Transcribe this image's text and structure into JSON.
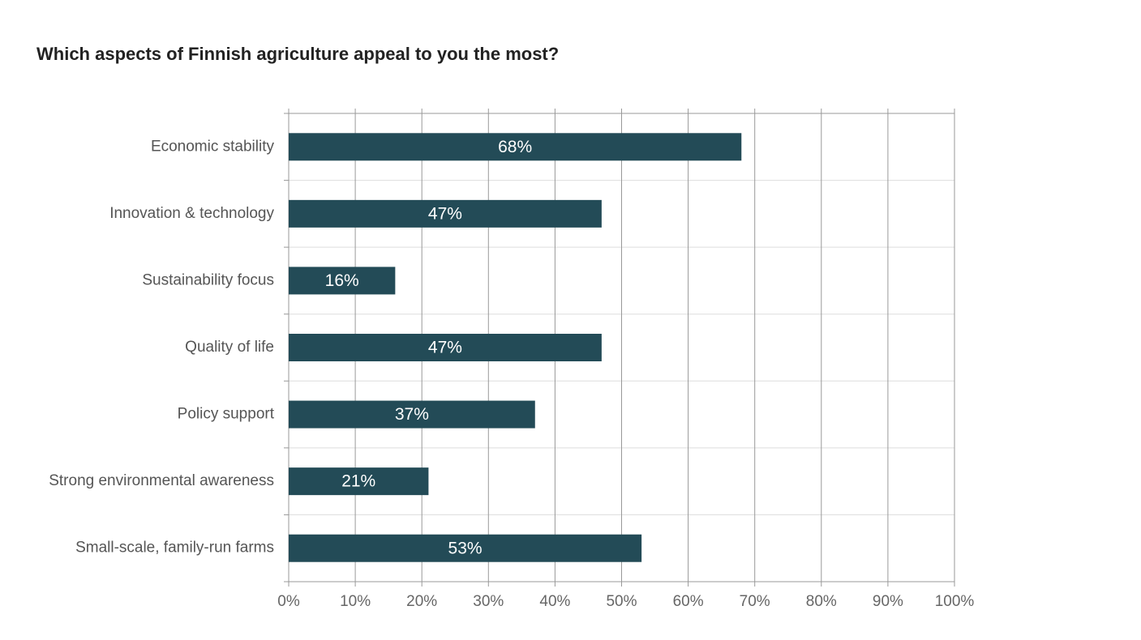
{
  "chart_data": {
    "type": "bar",
    "orientation": "horizontal",
    "title": "Which aspects of Finnish agriculture appeal to you the most?",
    "categories": [
      "Economic stability",
      "Innovation & technology",
      "Sustainability focus",
      "Quality of life",
      "Policy support",
      "Strong environmental awareness",
      "Small-scale, family-run farms"
    ],
    "values": [
      68,
      47,
      16,
      47,
      37,
      21,
      53
    ],
    "value_labels": [
      "68%",
      "47%",
      "16%",
      "47%",
      "37%",
      "21%",
      "53%"
    ],
    "color": "#234b57",
    "xlim": [
      0,
      100
    ],
    "xticks": [
      {
        "value": 0,
        "label": "0%"
      },
      {
        "value": 10,
        "label": "10%"
      },
      {
        "value": 20,
        "label": "20%"
      },
      {
        "value": 30,
        "label": "30%"
      },
      {
        "value": 40,
        "label": "40%"
      },
      {
        "value": 50,
        "label": "50%"
      },
      {
        "value": 60,
        "label": "60%"
      },
      {
        "value": 70,
        "label": "70%"
      },
      {
        "value": 80,
        "label": "80%"
      },
      {
        "value": 90,
        "label": "90%"
      },
      {
        "value": 100,
        "label": "100%"
      }
    ],
    "grid": true
  }
}
